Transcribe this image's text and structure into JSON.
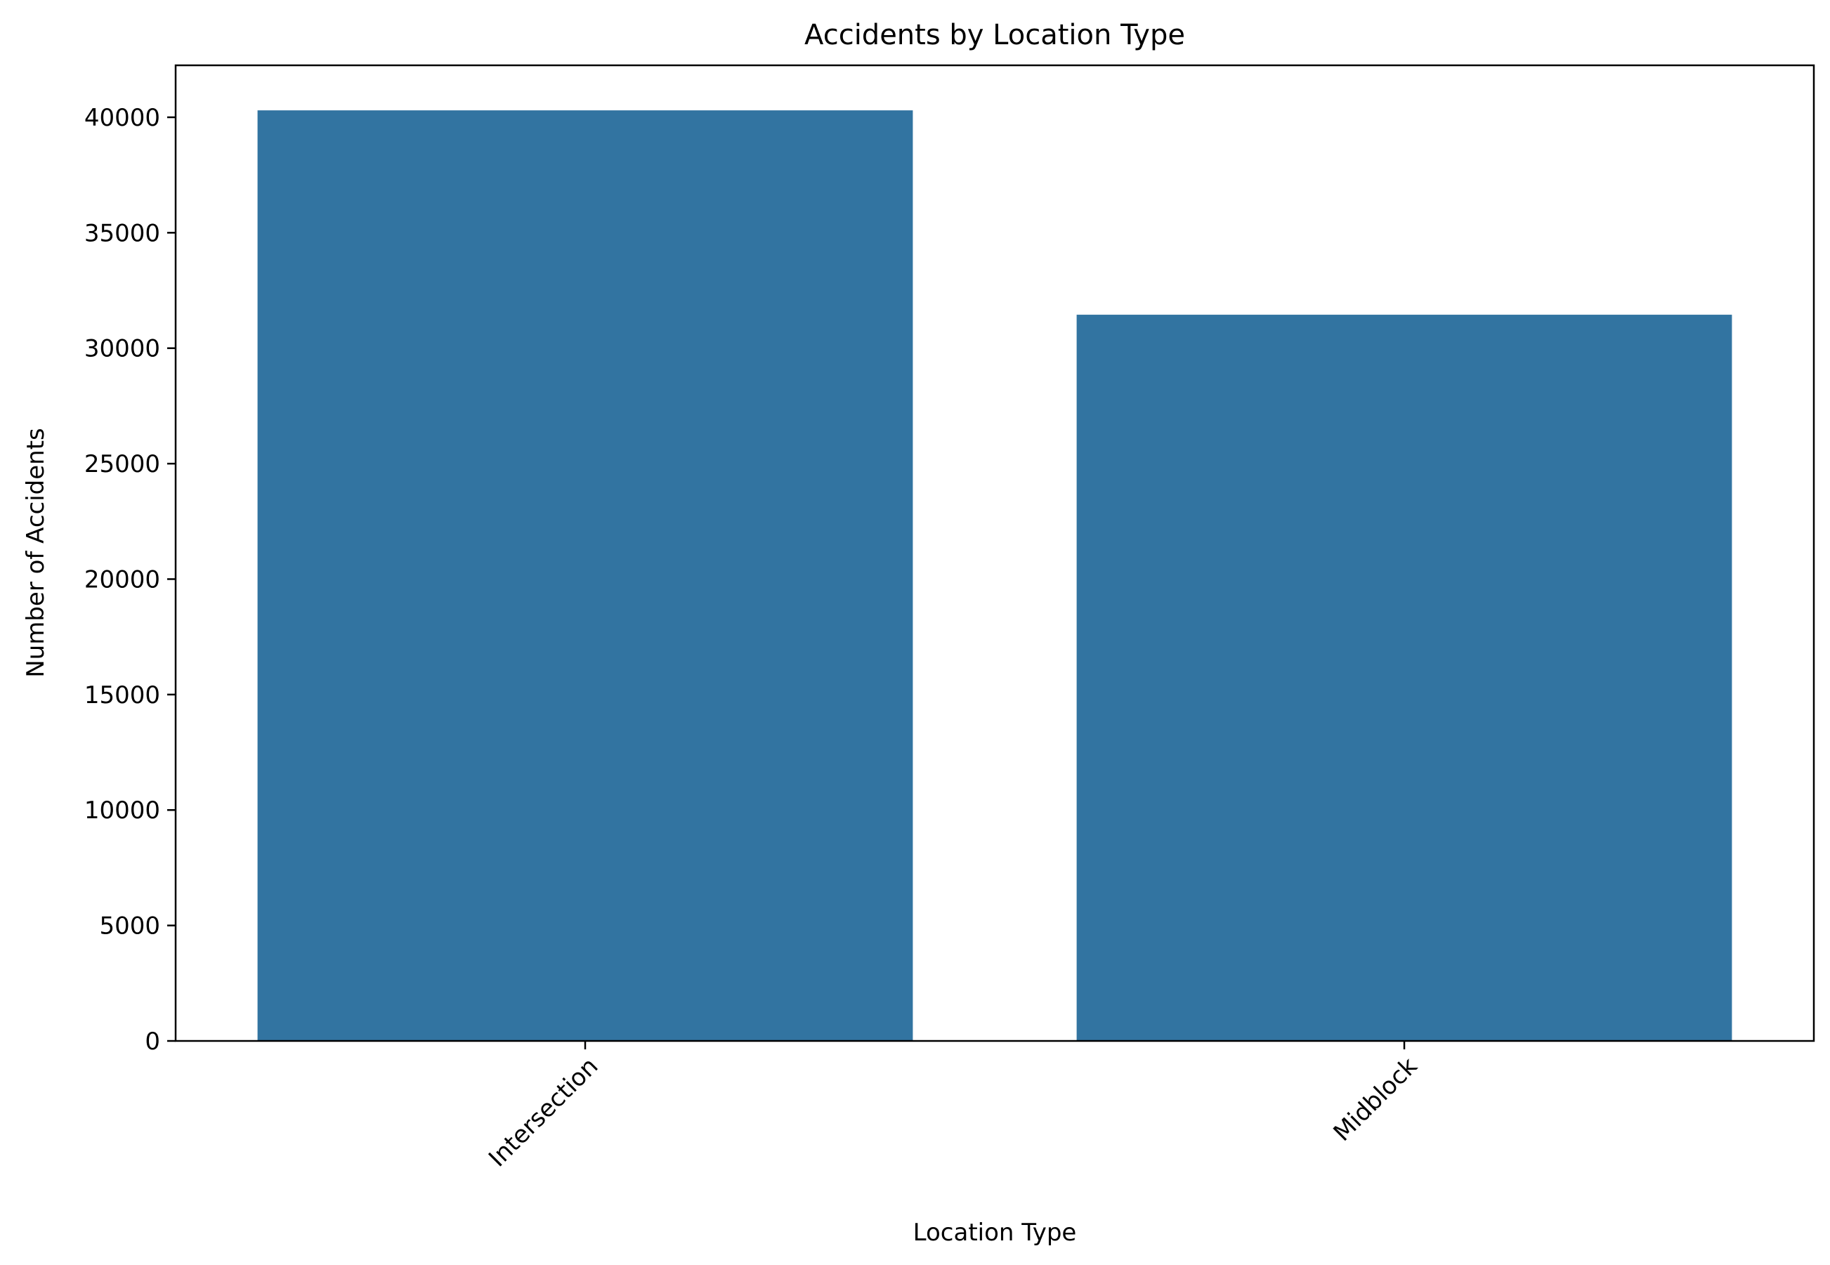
{
  "chart_data": {
    "type": "bar",
    "title": "Accidents by Location Type",
    "xlabel": "Location Type",
    "ylabel": "Number of Accidents",
    "categories": [
      "Intersection",
      "Midblock"
    ],
    "values": [
      40300,
      31450
    ],
    "ylim": [
      0,
      42250
    ],
    "yticks": [
      0,
      5000,
      10000,
      15000,
      20000,
      25000,
      30000,
      35000,
      40000
    ],
    "ytick_labels": [
      "0",
      "5000",
      "10000",
      "15000",
      "20000",
      "25000",
      "30000",
      "35000",
      "40000"
    ],
    "xtick_rotation_deg": 45,
    "grid": false,
    "legend": "none",
    "bar_color": "#3274a1"
  }
}
